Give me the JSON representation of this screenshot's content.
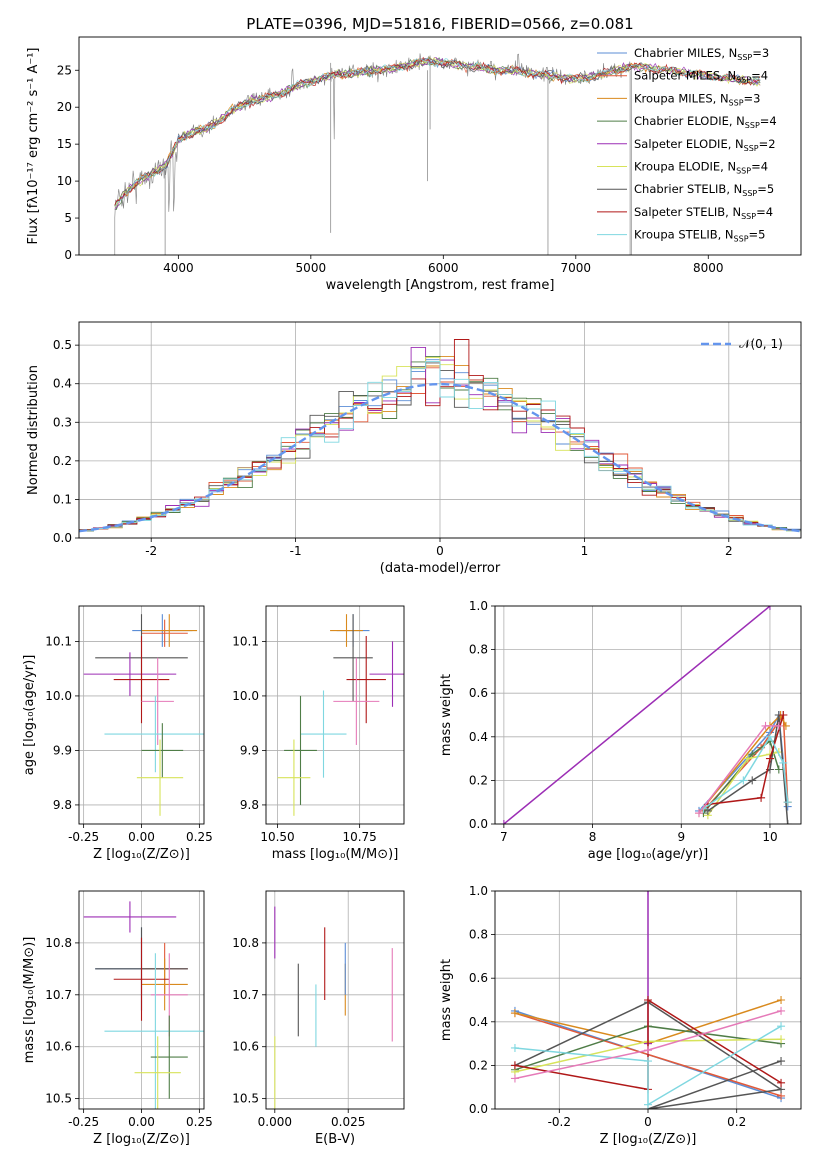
{
  "title": "PLATE=0396, MJD=51816, FIBERID=0566, z=0.081",
  "colors": {
    "chabrier_miles": "#5b8dd6",
    "salpeter_miles": "#e15a3a",
    "kroupa_miles": "#d98a1e",
    "chabrier_elodie": "#4f7d47",
    "salpeter_elodie": "#9c2eb5",
    "kroupa_elodie": "#d7e35a",
    "chabrier_stelib": "#555555",
    "salpeter_stelib": "#b01818",
    "kroupa_stelib": "#7fd7e0",
    "pink": "#e57ab8",
    "spectrum": "#808080",
    "normal_curve": "#6495ed",
    "grid": "#b0b0b0"
  },
  "chart_data": [
    {
      "id": "spectrum",
      "type": "line",
      "xlabel": "wavelength [Angstrom, rest frame]",
      "ylabel": "Flux [fλ10⁻¹⁷ erg cm⁻² s⁻¹ A⁻¹]",
      "xlim": [
        3250,
        8700
      ],
      "ylim": [
        0,
        29.5
      ],
      "xticks": [
        4000,
        5000,
        6000,
        7000,
        8000
      ],
      "yticks": [
        0,
        5,
        10,
        15,
        20,
        25
      ],
      "grid": false,
      "legend_position": "upper right",
      "continuum": {
        "x": [
          3520,
          3600,
          3700,
          3800,
          3900,
          3960,
          4000,
          4100,
          4200,
          4300,
          4400,
          4500,
          4600,
          4700,
          4800,
          4860,
          4900,
          5000,
          5100,
          5200,
          5300,
          5400,
          5500,
          5600,
          5700,
          5800,
          5900,
          6000,
          6100,
          6200,
          6300,
          6400,
          6500,
          6600,
          6700,
          6800,
          6900,
          7000,
          7100,
          7200,
          7300,
          7420
        ],
        "y": [
          6.5,
          8.5,
          10.0,
          11.0,
          12.0,
          14.0,
          15.5,
          16.5,
          17.0,
          18.0,
          19.5,
          20.5,
          21.0,
          21.5,
          22.0,
          22.5,
          23.0,
          23.5,
          24.0,
          24.5,
          24.5,
          24.8,
          25.0,
          25.2,
          25.5,
          26.0,
          26.2,
          26.0,
          25.8,
          25.5,
          25.3,
          25.0,
          25.0,
          24.8,
          24.5,
          24.3,
          24.0,
          23.8,
          24.0,
          24.5,
          25.0,
          25.5
        ]
      },
      "model_extension": {
        "x": [
          7420,
          7500,
          7600,
          7700,
          7800,
          7900,
          8000,
          8100,
          8200,
          8300,
          8400
        ],
        "y": [
          25.5,
          25.5,
          25.2,
          25.0,
          24.8,
          24.5,
          24.3,
          24.0,
          23.8,
          23.6,
          23.4
        ]
      },
      "legend_entries": [
        {
          "label": "Chabrier MILES, N",
          "sub": "SSP",
          "tail": "=3",
          "series": "chabrier_miles"
        },
        {
          "label": "Salpeter MILES, N",
          "sub": "SSP",
          "tail": "=4",
          "series": "salpeter_miles"
        },
        {
          "label": "Kroupa MILES, N",
          "sub": "SSP",
          "tail": "=3",
          "series": "kroupa_miles"
        },
        {
          "label": "Chabrier ELODIE, N",
          "sub": "SSP",
          "tail": "=4",
          "series": "chabrier_elodie"
        },
        {
          "label": "Salpeter ELODIE, N",
          "sub": "SSP",
          "tail": "=2",
          "series": "salpeter_elodie"
        },
        {
          "label": "Kroupa ELODIE, N",
          "sub": "SSP",
          "tail": "=4",
          "series": "kroupa_elodie"
        },
        {
          "label": "Chabrier STELIB, N",
          "sub": "SSP",
          "tail": "=5",
          "series": "chabrier_stelib"
        },
        {
          "label": "Salpeter STELIB, N",
          "sub": "SSP",
          "tail": "=4",
          "series": "salpeter_stelib"
        },
        {
          "label": "Kroupa STELIB, N",
          "sub": "SSP",
          "tail": "=5",
          "series": "kroupa_stelib"
        }
      ]
    },
    {
      "id": "residuals",
      "type": "line",
      "xlabel": "(data-model)/error",
      "ylabel": "Normed distribution",
      "xlim": [
        -2.5,
        2.5
      ],
      "ylim": [
        0,
        0.56
      ],
      "xticks": [
        -2,
        -1,
        0,
        1,
        2
      ],
      "yticks": [
        0.0,
        0.1,
        0.2,
        0.3,
        0.4,
        0.5
      ],
      "grid": true,
      "legend_position": "upper right",
      "legend_label": "𝒩(0, 1)",
      "bin_width": 0.1,
      "bin_start": -2.5,
      "note": "nine step histograms (one per fitted model) around a standard normal curve"
    },
    {
      "id": "z_age",
      "type": "scatter",
      "xlabel": "Z [log₁₀(Z/Z⊙)]",
      "ylabel": "age  [log₁₀(age/yr)]",
      "xlim": [
        -0.27,
        0.27
      ],
      "ylim": [
        9.765,
        10.165
      ],
      "xticks": [
        -0.25,
        0.0,
        0.25
      ],
      "yticks": [
        9.8,
        9.9,
        10.0,
        10.1
      ],
      "grid": true
    },
    {
      "id": "mass_age",
      "type": "scatter",
      "xlabel": "mass [log₁₀(M/M⊙)]",
      "ylabel": "",
      "xlim": [
        10.465,
        10.885
      ],
      "ylim": [
        9.765,
        10.165
      ],
      "xticks": [
        10.5,
        10.75
      ],
      "yticks": [
        9.8,
        9.9,
        10.0,
        10.1
      ],
      "grid": true
    },
    {
      "id": "age_weight",
      "type": "line",
      "xlabel": "age  [log₁₀(age/yr)]",
      "ylabel": "mass weight",
      "xlim": [
        6.9,
        10.35
      ],
      "ylim": [
        0,
        1.0
      ],
      "xticks": [
        7,
        8,
        9,
        10
      ],
      "yticks": [
        0.0,
        0.2,
        0.4,
        0.6,
        0.8,
        1.0
      ],
      "grid": true,
      "series": [
        {
          "key": "salpeter_elodie",
          "points": [
            [
              7.0,
              0.0
            ],
            [
              10.0,
              1.0
            ]
          ]
        },
        {
          "key": "chabrier_miles",
          "points": [
            [
              9.2,
              0.06
            ],
            [
              10.0,
              0.42
            ],
            [
              10.1,
              0.5
            ],
            [
              10.2,
              0.08
            ]
          ]
        },
        {
          "key": "salpeter_miles",
          "points": [
            [
              9.25,
              0.06
            ],
            [
              9.9,
              0.35
            ],
            [
              10.15,
              0.5
            ],
            [
              10.2,
              0.1
            ]
          ]
        },
        {
          "key": "kroupa_miles",
          "points": [
            [
              9.2,
              0.05
            ],
            [
              10.0,
              0.45
            ],
            [
              10.12,
              0.5
            ],
            [
              10.18,
              0.45
            ]
          ]
        },
        {
          "key": "chabrier_elodie",
          "points": [
            [
              9.25,
              0.05
            ],
            [
              9.8,
              0.32
            ],
            [
              10.0,
              0.38
            ],
            [
              10.1,
              0.25
            ]
          ]
        },
        {
          "key": "kroupa_elodie",
          "points": [
            [
              9.3,
              0.04
            ],
            [
              9.75,
              0.3
            ],
            [
              10.0,
              0.32
            ],
            [
              10.1,
              0.33
            ]
          ]
        },
        {
          "key": "chabrier_stelib",
          "points": [
            [
              9.3,
              0.06
            ],
            [
              9.8,
              0.2
            ],
            [
              10.0,
              0.25
            ],
            [
              10.1,
              0.5
            ],
            [
              10.2,
              0.0
            ]
          ]
        },
        {
          "key": "salpeter_stelib",
          "points": [
            [
              9.3,
              0.09
            ],
            [
              9.9,
              0.12
            ],
            [
              10.0,
              0.3
            ],
            [
              10.15,
              0.5
            ]
          ]
        },
        {
          "key": "kroupa_stelib",
          "points": [
            [
              9.25,
              0.07
            ],
            [
              9.7,
              0.2
            ],
            [
              10.0,
              0.4
            ],
            [
              10.15,
              0.28
            ],
            [
              10.2,
              0.1
            ]
          ]
        },
        {
          "key": "pink",
          "points": [
            [
              9.2,
              0.05
            ],
            [
              9.95,
              0.45
            ],
            [
              10.1,
              0.45
            ]
          ]
        }
      ]
    },
    {
      "id": "z_mass",
      "type": "scatter",
      "xlabel": "Z [log₁₀(Z/Z⊙)]",
      "ylabel": "mass [log₁₀(M/M⊙)]",
      "xlim": [
        -0.27,
        0.27
      ],
      "ylim": [
        10.48,
        10.9
      ],
      "xticks": [
        -0.25,
        0.0,
        0.25
      ],
      "yticks": [
        10.5,
        10.6,
        10.7,
        10.8
      ],
      "grid": true
    },
    {
      "id": "ebv_mass",
      "type": "scatter",
      "xlabel": "E(B-V)",
      "ylabel": "",
      "xlim": [
        -0.003,
        0.044
      ],
      "ylim": [
        10.48,
        10.9
      ],
      "xticks": [
        0.0,
        0.025
      ],
      "yticks": [
        10.5,
        10.6,
        10.7,
        10.8
      ],
      "grid": true
    },
    {
      "id": "z_weight",
      "type": "line",
      "xlabel": "Z [log₁₀(Z/Z⊙)]",
      "ylabel": "mass weight",
      "xlim": [
        -0.345,
        0.345
      ],
      "ylim": [
        0,
        1.0
      ],
      "xticks": [
        -0.2,
        0.0,
        0.2
      ],
      "yticks": [
        0.0,
        0.2,
        0.4,
        0.6,
        0.8,
        1.0
      ],
      "grid": true,
      "series": [
        {
          "key": "chabrier_miles",
          "points": [
            [
              -0.3,
              0.45
            ],
            [
              0.3,
              0.05
            ]
          ]
        },
        {
          "key": "salpeter_miles",
          "points": [
            [
              -0.3,
              0.44
            ],
            [
              0.3,
              0.06
            ]
          ]
        },
        {
          "key": "kroupa_miles",
          "points": [
            [
              -0.3,
              0.44
            ],
            [
              0.0,
              0.3
            ],
            [
              0.3,
              0.5
            ]
          ]
        },
        {
          "key": "salpeter_elodie",
          "points": [
            [
              0.0,
              1.0
            ],
            [
              0.0,
              0.3
            ]
          ]
        },
        {
          "key": "chabrier_elodie",
          "points": [
            [
              -0.3,
              0.18
            ],
            [
              0.0,
              0.38
            ],
            [
              0.3,
              0.3
            ]
          ]
        },
        {
          "key": "kroupa_elodie",
          "points": [
            [
              -0.3,
              0.17
            ],
            [
              0.0,
              0.31
            ],
            [
              0.3,
              0.32
            ]
          ]
        },
        {
          "key": "chabrier_stelib",
          "points": [
            [
              -0.3,
              0.2
            ],
            [
              0.0,
              0.49
            ],
            [
              0.3,
              0.09
            ],
            [
              0.0,
              0.0
            ],
            [
              0.3,
              0.22
            ]
          ]
        },
        {
          "key": "salpeter_stelib",
          "points": [
            [
              -0.3,
              0.2
            ],
            [
              0.0,
              0.09
            ],
            [
              0.0,
              0.5
            ],
            [
              0.3,
              0.12
            ]
          ]
        },
        {
          "key": "kroupa_stelib",
          "points": [
            [
              -0.3,
              0.28
            ],
            [
              0.0,
              0.22
            ],
            [
              0.0,
              0.02
            ],
            [
              0.3,
              0.38
            ]
          ]
        },
        {
          "key": "pink",
          "points": [
            [
              -0.3,
              0.14
            ],
            [
              0.0,
              0.27
            ],
            [
              0.3,
              0.45
            ]
          ]
        }
      ]
    }
  ]
}
